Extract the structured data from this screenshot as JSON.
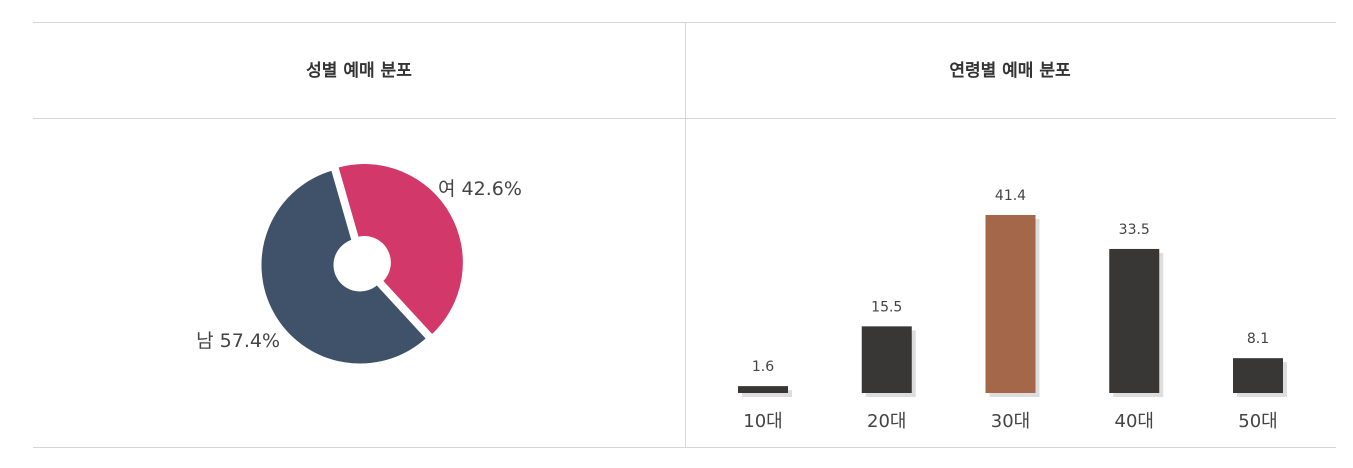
{
  "chart_data": [
    {
      "type": "pie",
      "title": "성별 예매 분포",
      "categories": [
        "여",
        "남"
      ],
      "values": [
        42.6,
        57.4
      ],
      "value_labels": [
        "42.6%",
        "57.4%"
      ],
      "colors": [
        "#d2386a",
        "#40526a"
      ]
    },
    {
      "type": "bar",
      "title": "연령별 예매 분포",
      "categories": [
        "10대",
        "20대",
        "30대",
        "40대",
        "50대"
      ],
      "values": [
        1.6,
        15.5,
        41.4,
        33.5,
        8.1
      ],
      "colors": [
        "#383735",
        "#383735",
        "#a5674a",
        "#383735",
        "#383735"
      ]
    }
  ]
}
